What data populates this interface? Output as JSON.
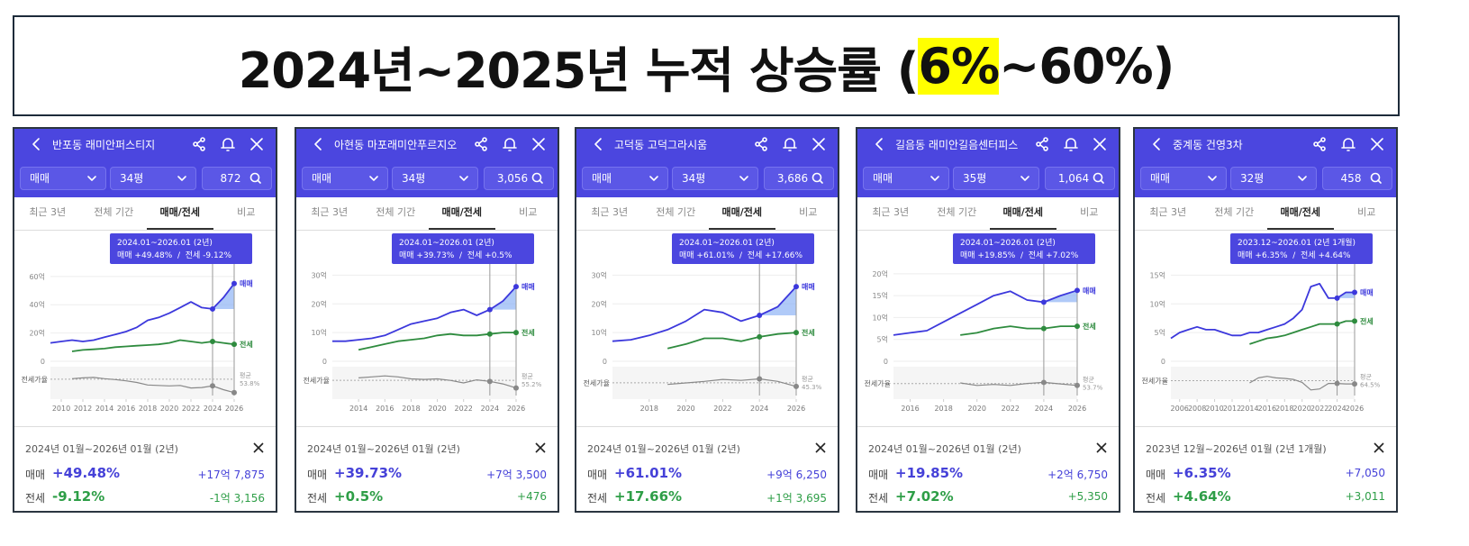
{
  "header": {
    "title_before": "2024년~2025년 누적 상승률 (",
    "highlight": "6%",
    "title_after": "~60%)"
  },
  "panels": [
    {
      "name": "반포동 래미안퍼스티지",
      "trade": "매매",
      "size": "34평",
      "count": "872",
      "tabs": [
        "최근 3년",
        "전체 기간",
        "매매/전세",
        "비교"
      ],
      "active_tab": 2,
      "tooltip": {
        "period": "2024.01~2026.01 (2년)",
        "detail": "매매 +49.48%  /  전세 -9.12%"
      },
      "chart": {
        "type": "line",
        "x": [
          2009,
          2010,
          2011,
          2012,
          2013,
          2014,
          2015,
          2016,
          2017,
          2018,
          2019,
          2020,
          2021,
          2022,
          2023,
          2024,
          2025,
          2026
        ],
        "xlim": [
          2009,
          2026
        ],
        "xticks": [
          2010,
          2012,
          2014,
          2016,
          2018,
          2020,
          2022,
          2024,
          2026
        ],
        "ylim": [
          0,
          65
        ],
        "yticks": [
          0,
          {
            "value": 20,
            "label": "20억"
          },
          {
            "value": 40,
            "label": "40억"
          },
          {
            "value": 60,
            "label": "60억"
          }
        ],
        "grid": true,
        "highlight": [
          2024,
          2026
        ],
        "series": [
          {
            "name": "매매",
            "color": "#3c38dc",
            "values": [
              13,
              14,
              15,
              14,
              15,
              17,
              19,
              21,
              24,
              29,
              31,
              34,
              38,
              42,
              38,
              37,
              45,
              55
            ]
          },
          {
            "name": "전세",
            "color": "#2e8b3e",
            "values": [
              null,
              null,
              7,
              8,
              8.5,
              9,
              10,
              10.5,
              11,
              11.5,
              12,
              13,
              15,
              14,
              13,
              14,
              13,
              12
            ]
          }
        ],
        "ratio": {
          "name": "전세가율",
          "ylim": [
            15,
            75
          ],
          "values": [
            null,
            null,
            55,
            57,
            58,
            55,
            53,
            50,
            46,
            40,
            39,
            38,
            39,
            33,
            34,
            38,
            29,
            22
          ],
          "avg_label": "평균",
          "avg": {
            "value": 53.8,
            "label": "53.8%"
          }
        }
      },
      "summary": {
        "period": "2024년 01월~2026년 01월 (2년)",
        "rows": [
          {
            "label": "매매",
            "pct": "+49.48%",
            "amount": "+17억 7,875"
          },
          {
            "label": "전세",
            "pct": "-9.12%",
            "amount": "-1억 3,156"
          }
        ]
      }
    },
    {
      "name": "아현동 마포래미안푸르지오",
      "trade": "매매",
      "size": "34평",
      "count": "3,056",
      "tabs": [
        "최근 3년",
        "전체 기간",
        "매매/전세",
        "비교"
      ],
      "active_tab": 2,
      "tooltip": {
        "period": "2024.01~2026.01 (2년)",
        "detail": "매매 +39.73%  /  전세 +0.5%"
      },
      "chart": {
        "type": "line",
        "x": [
          2012,
          2013,
          2014,
          2015,
          2016,
          2017,
          2018,
          2019,
          2020,
          2021,
          2022,
          2023,
          2024,
          2025,
          2026
        ],
        "xlim": [
          2012,
          2026
        ],
        "xticks": [
          2014,
          2016,
          2018,
          2020,
          2022,
          2024,
          2026
        ],
        "ylim": [
          0,
          32
        ],
        "yticks": [
          0,
          {
            "value": 10,
            "label": "10억"
          },
          {
            "value": 20,
            "label": "20억"
          },
          {
            "value": 30,
            "label": "30억"
          }
        ],
        "grid": true,
        "highlight": [
          2024,
          2026
        ],
        "series": [
          {
            "name": "매매",
            "color": "#3c38dc",
            "values": [
              7,
              7,
              7.5,
              8,
              9,
              11,
              13,
              14,
              15,
              17,
              18,
              16,
              18,
              21,
              26
            ]
          },
          {
            "name": "전세",
            "color": "#2e8b3e",
            "values": [
              null,
              null,
              4,
              5,
              6,
              7,
              7.5,
              8,
              9,
              9.5,
              9,
              9,
              9.5,
              10,
              10
            ]
          }
        ],
        "ratio": {
          "name": "전세가율",
          "ylim": [
            25,
            75
          ],
          "values": [
            null,
            null,
            60,
            62,
            64,
            62,
            58,
            57,
            58,
            55,
            50,
            56,
            53,
            48,
            40
          ],
          "avg_label": "평균",
          "avg": {
            "value": 55.2,
            "label": "55.2%"
          }
        }
      },
      "summary": {
        "period": "2024년 01월~2026년 01월 (2년)",
        "rows": [
          {
            "label": "매매",
            "pct": "+39.73%",
            "amount": "+7억 3,500"
          },
          {
            "label": "전세",
            "pct": "+0.5%",
            "amount": "+476"
          }
        ]
      }
    },
    {
      "name": "고덕동 고덕그라시움",
      "trade": "매매",
      "size": "34평",
      "count": "3,686",
      "tabs": [
        "최근 3년",
        "전체 기간",
        "매매/전세",
        "비교"
      ],
      "active_tab": 2,
      "tooltip": {
        "period": "2024.01~2026.01 (2년)",
        "detail": "매매 +61.01%  /  전세 +17.66%"
      },
      "chart": {
        "type": "line",
        "x": [
          2016,
          2017,
          2018,
          2019,
          2020,
          2021,
          2022,
          2023,
          2024,
          2025,
          2026
        ],
        "xlim": [
          2016,
          2026
        ],
        "xticks": [
          2018,
          2020,
          2022,
          2024,
          2026
        ],
        "ylim": [
          0,
          32
        ],
        "yticks": [
          0,
          {
            "value": 10,
            "label": "10억"
          },
          {
            "value": 20,
            "label": "20억"
          },
          {
            "value": 30,
            "label": "30억"
          }
        ],
        "grid": true,
        "highlight": [
          2024,
          2026
        ],
        "series": [
          {
            "name": "매매",
            "color": "#3c38dc",
            "values": [
              7,
              7.5,
              9,
              11,
              14,
              18,
              17,
              14,
              16,
              19,
              26
            ]
          },
          {
            "name": "전세",
            "color": "#2e8b3e",
            "values": [
              null,
              null,
              null,
              4.5,
              6,
              8,
              8,
              7,
              8.5,
              9.5,
              10
            ]
          }
        ],
        "ratio": {
          "name": "전세가율",
          "ylim": [
            20,
            70
          ],
          "values": [
            null,
            null,
            null,
            42,
            45,
            48,
            52,
            50,
            53,
            48,
            38
          ],
          "avg_label": "평균",
          "avg": {
            "value": 45.3,
            "label": "45.3%"
          }
        }
      },
      "summary": {
        "period": "2024년 01월~2026년 01월 (2년)",
        "rows": [
          {
            "label": "매매",
            "pct": "+61.01%",
            "amount": "+9억 6,250"
          },
          {
            "label": "전세",
            "pct": "+17.66%",
            "amount": "+1억 3,695"
          }
        ]
      }
    },
    {
      "name": "길음동 래미안길음센터피스",
      "trade": "매매",
      "size": "35평",
      "count": "1,064",
      "tabs": [
        "최근 3년",
        "전체 기간",
        "매매/전세",
        "비교"
      ],
      "active_tab": 2,
      "tooltip": {
        "period": "2024.01~2026.01 (2년)",
        "detail": "매매 +19.85%  /  전세 +7.02%"
      },
      "chart": {
        "type": "line",
        "x": [
          2015,
          2016,
          2017,
          2018,
          2019,
          2020,
          2021,
          2022,
          2023,
          2024,
          2025,
          2026
        ],
        "xlim": [
          2015,
          2026
        ],
        "xticks": [
          2016,
          2018,
          2020,
          2022,
          2024,
          2026
        ],
        "ylim": [
          0,
          21
        ],
        "yticks": [
          0,
          {
            "value": 5,
            "label": "5억"
          },
          {
            "value": 10,
            "label": "10억"
          },
          {
            "value": 15,
            "label": "15억"
          },
          {
            "value": 20,
            "label": "20억"
          }
        ],
        "grid": true,
        "highlight": [
          2024,
          2026
        ],
        "series": [
          {
            "name": "매매",
            "color": "#3c38dc",
            "values": [
              6,
              6.5,
              7,
              9,
              11,
              13,
              15,
              16,
              14,
              13.5,
              15,
              16.2
            ]
          },
          {
            "name": "전세",
            "color": "#2e8b3e",
            "values": [
              null,
              null,
              null,
              null,
              6,
              6.5,
              7.5,
              8,
              7.5,
              7.5,
              8,
              8
            ]
          }
        ],
        "ratio": {
          "name": "전세가율",
          "ylim": [
            30,
            80
          ],
          "values": [
            null,
            null,
            null,
            null,
            55,
            50,
            52,
            50,
            54,
            56,
            53,
            50
          ],
          "avg_label": "평균",
          "avg": {
            "value": 53.7,
            "label": "53.7%"
          }
        }
      },
      "summary": {
        "period": "2024년 01월~2026년 01월 (2년)",
        "rows": [
          {
            "label": "매매",
            "pct": "+19.85%",
            "amount": "+2억 6,750"
          },
          {
            "label": "전세",
            "pct": "+7.02%",
            "amount": "+5,350"
          }
        ]
      }
    },
    {
      "name": "중계동 건영3차",
      "trade": "매매",
      "size": "32평",
      "count": "458",
      "tabs": [
        "최근 3년",
        "전체 기간",
        "매매/전세",
        "비교"
      ],
      "active_tab": 2,
      "tooltip": {
        "period": "2023.12~2026.01 (2년 1개월)",
        "detail": "매매 +6.35%  /  전세 +4.64%"
      },
      "chart": {
        "type": "line",
        "x": [
          2005,
          2006,
          2007,
          2008,
          2009,
          2010,
          2011,
          2012,
          2013,
          2014,
          2015,
          2016,
          2017,
          2018,
          2019,
          2020,
          2021,
          2022,
          2023,
          2024,
          2025,
          2026
        ],
        "xlim": [
          2005,
          2026
        ],
        "xticks": [
          2006,
          2008,
          2010,
          2012,
          2014,
          2016,
          2018,
          2020,
          2022,
          2024,
          2026
        ],
        "ylim": [
          0,
          16
        ],
        "yticks": [
          0,
          {
            "value": 5,
            "label": "5억"
          },
          {
            "value": 10,
            "label": "10억"
          },
          {
            "value": 15,
            "label": "15억"
          }
        ],
        "grid": true,
        "highlight": [
          2024,
          2026
        ],
        "series": [
          {
            "name": "매매",
            "color": "#3c38dc",
            "values": [
              4,
              5,
              5.5,
              6,
              5.5,
              5.5,
              5,
              4.5,
              4.5,
              5,
              5,
              5.5,
              6,
              6.5,
              7.5,
              9,
              13,
              13.5,
              11,
              11,
              12,
              12
            ]
          },
          {
            "name": "전세",
            "color": "#2e8b3e",
            "values": [
              null,
              null,
              null,
              null,
              null,
              null,
              null,
              null,
              null,
              3,
              3.5,
              4,
              4.2,
              4.5,
              5,
              5.5,
              6,
              6.5,
              6.5,
              6.5,
              7,
              7
            ]
          }
        ],
        "ratio": {
          "name": "전세가율",
          "ylim": [
            35,
            85
          ],
          "values": [
            null,
            null,
            null,
            null,
            null,
            null,
            null,
            null,
            null,
            60,
            70,
            73,
            70,
            69,
            67,
            61,
            46,
            48,
            59,
            59,
            58,
            58
          ],
          "avg_label": "평균",
          "avg": {
            "value": 64.5,
            "label": "64.5%"
          }
        }
      },
      "summary": {
        "period": "2023년 12월~2026년 01월 (2년 1개월)",
        "rows": [
          {
            "label": "매매",
            "pct": "+6.35%",
            "amount": "+7,050"
          },
          {
            "label": "전세",
            "pct": "+4.64%",
            "amount": "+3,011"
          }
        ]
      }
    }
  ]
}
